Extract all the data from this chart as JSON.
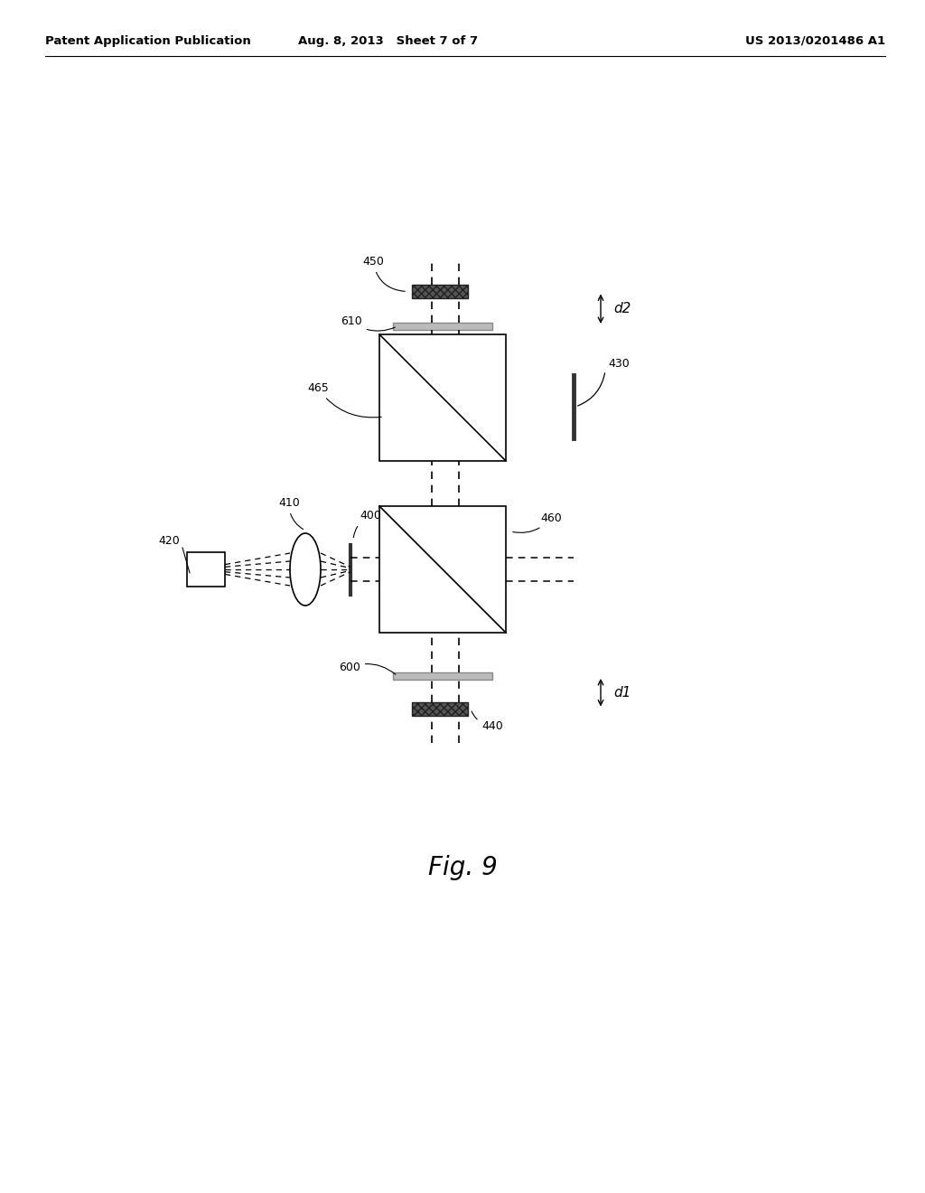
{
  "bg_color": "#ffffff",
  "header_left": "Patent Application Publication",
  "header_mid": "Aug. 8, 2013   Sheet 7 of 7",
  "header_right": "US 2013/0201486 A1",
  "fig_label": "Fig. 9"
}
